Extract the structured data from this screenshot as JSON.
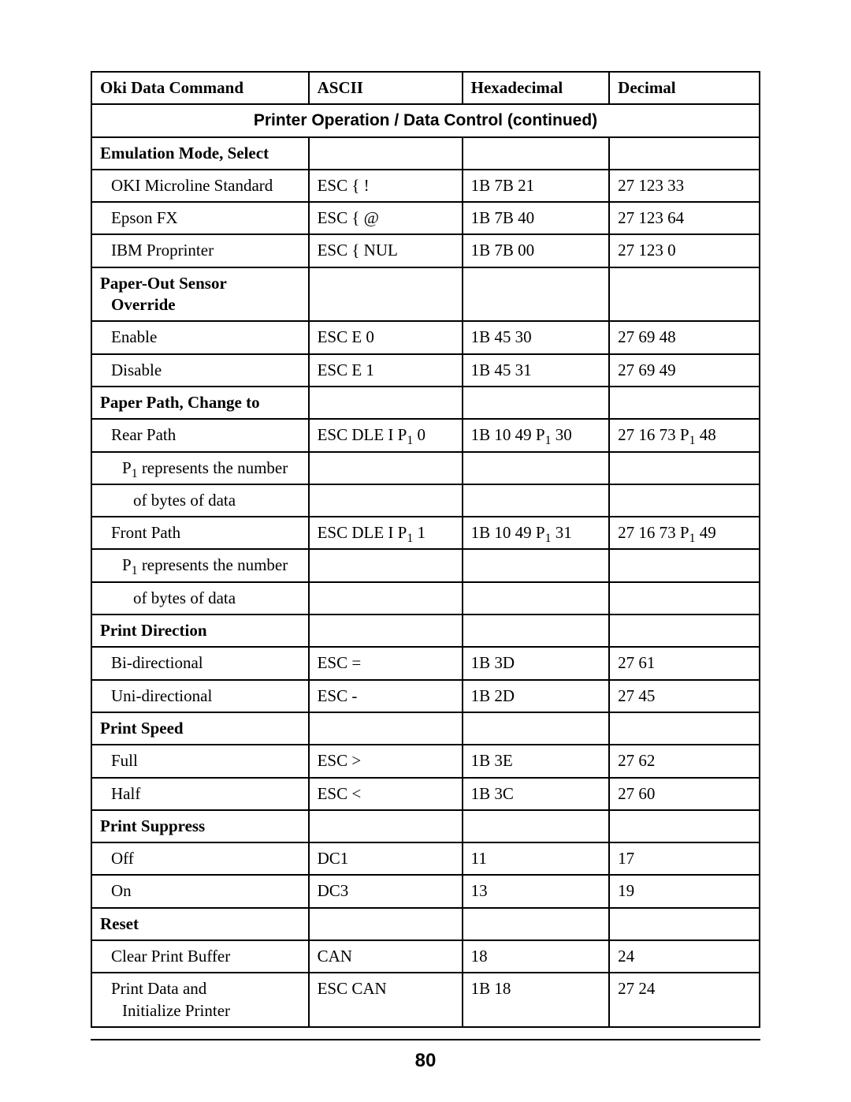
{
  "page_number": "80",
  "headers": {
    "cmd": "Oki Data Command",
    "ascii": "ASCII",
    "hex": "Hexadecimal",
    "dec": "Decimal"
  },
  "section_title": "Printer Operation / Data Control (continued)",
  "groups": [
    {
      "title": "Emulation Mode, Select",
      "rows": [
        {
          "cmd": "OKI Microline Standard",
          "ascii": "ESC { !",
          "hex": "1B 7B 21",
          "dec": "27 123 33"
        },
        {
          "cmd": "Epson FX",
          "ascii": "ESC { @",
          "hex": "1B 7B 40",
          "dec": "27 123 64"
        },
        {
          "cmd": "IBM Proprinter",
          "ascii": "ESC { NUL",
          "hex": "1B 7B 00",
          "dec": "27 123 0"
        }
      ]
    },
    {
      "title": "Paper-Out Sensor\nOverride",
      "rows": [
        {
          "cmd": "Enable",
          "ascii": "ESC E 0",
          "hex": "1B 45 30",
          "dec": "27 69 48"
        },
        {
          "cmd": "Disable",
          "ascii": "ESC E 1",
          "hex": "1B 45 31",
          "dec": "27 69 49"
        }
      ]
    },
    {
      "title": "Paper Path, Change to",
      "rows_special": "paperpath"
    },
    {
      "title": "Print Direction",
      "rows": [
        {
          "cmd": "Bi-directional",
          "ascii": "ESC =",
          "hex": "1B 3D",
          "dec": "27 61"
        },
        {
          "cmd": "Uni-directional",
          "ascii": "ESC -",
          "hex": "1B 2D",
          "dec": "27 45"
        }
      ]
    },
    {
      "title": "Print Speed",
      "rows": [
        {
          "cmd": "Full",
          "ascii": "ESC >",
          "hex": "1B 3E",
          "dec": "27 62"
        },
        {
          "cmd": "Half",
          "ascii": "ESC <",
          "hex": "1B 3C",
          "dec": "27 60"
        }
      ]
    },
    {
      "title": "Print Suppress",
      "rows": [
        {
          "cmd": "Off",
          "ascii": "DC1",
          "hex": "11",
          "dec": "17"
        },
        {
          "cmd": "On",
          "ascii": "DC3",
          "hex": "13",
          "dec": "19"
        }
      ]
    },
    {
      "title": "Reset",
      "rows": [
        {
          "cmd": "Clear Print Buffer",
          "ascii": "CAN",
          "hex": "18",
          "dec": "24"
        },
        {
          "cmd": "Print Data and\nInitialize Printer",
          "ascii": "ESC CAN",
          "hex": "1B 18",
          "dec": "27 24"
        }
      ]
    }
  ],
  "paperpath": {
    "rear": {
      "label": "Rear Path",
      "ascii_pre": "ESC DLE I P",
      "ascii_post": " 0",
      "hex_pre": "1B 10 49 P",
      "hex_post": " 30",
      "dec_pre": "27 16 73 P",
      "dec_post": " 48"
    },
    "front": {
      "label": "Front Path",
      "ascii_pre": "ESC DLE I P",
      "ascii_post": " 1",
      "hex_pre": "1B 10 49 P",
      "hex_post": " 31",
      "dec_pre": "27 16 73 P",
      "dec_post": " 49"
    },
    "note_pre": "P",
    "note_post": " represents the number",
    "note_line2": "of bytes of data"
  }
}
